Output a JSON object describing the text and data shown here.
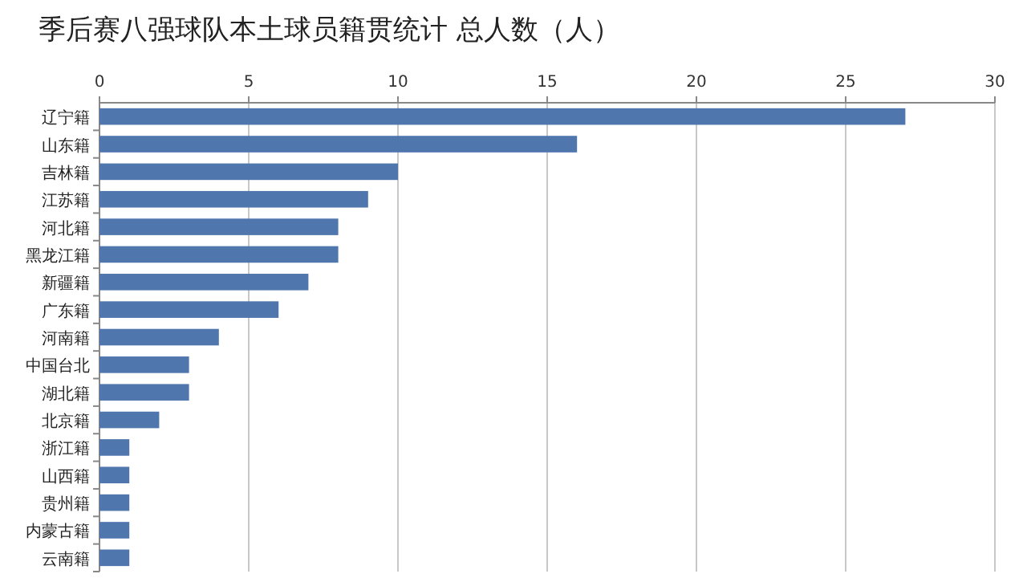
{
  "chart_data": {
    "type": "bar",
    "orientation": "horizontal",
    "title": "季后赛八强球队本土球员籍贯统计 总人数（人）",
    "categories": [
      "辽宁籍",
      "山东籍",
      "吉林籍",
      "江苏籍",
      "河北籍",
      "黑龙江籍",
      "新疆籍",
      "广东籍",
      "河南籍",
      "中国台北",
      "湖北籍",
      "北京籍",
      "浙江籍",
      "山西籍",
      "贵州籍",
      "内蒙古籍",
      "云南籍"
    ],
    "values": [
      27,
      16,
      10,
      9,
      8,
      8,
      7,
      6,
      4,
      3,
      3,
      2,
      1,
      1,
      1,
      1,
      1
    ],
    "color": "#4f77ad",
    "xlim": [
      0,
      30
    ],
    "xticks": [
      0,
      5,
      10,
      15,
      20,
      25,
      30
    ],
    "grid": "x"
  }
}
